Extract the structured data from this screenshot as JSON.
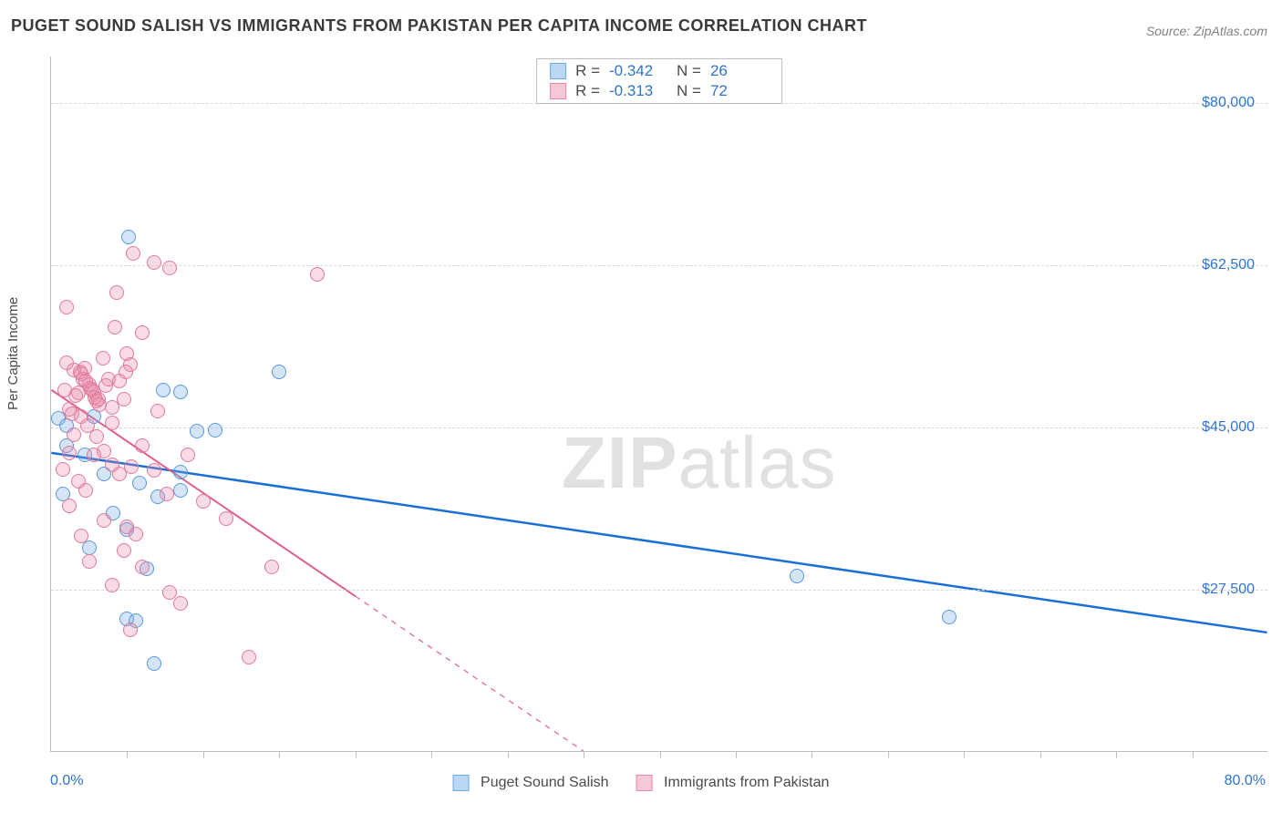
{
  "title": "PUGET SOUND SALISH VS IMMIGRANTS FROM PAKISTAN PER CAPITA INCOME CORRELATION CHART",
  "source": "Source: ZipAtlas.com",
  "y_axis_label": "Per Capita Income",
  "watermark": {
    "bold": "ZIP",
    "rest": "atlas"
  },
  "chart": {
    "type": "scatter",
    "xlim": [
      0,
      80
    ],
    "ylim": [
      10000,
      85000
    ],
    "x_min_label": "0.0%",
    "x_max_label": "80.0%",
    "y_ticks": [
      {
        "value": 80000,
        "label": "$80,000"
      },
      {
        "value": 62500,
        "label": "$62,500"
      },
      {
        "value": 45000,
        "label": "$45,000"
      },
      {
        "value": 27500,
        "label": "$27,500"
      }
    ],
    "x_tick_positions": [
      5,
      10,
      15,
      20,
      25,
      30,
      35,
      40,
      45,
      50,
      55,
      60,
      65,
      70,
      75
    ],
    "background_color": "#ffffff",
    "grid_color": "#d8d8d8",
    "marker_size": 16,
    "marker_opacity": 0.45,
    "series": [
      {
        "name": "Puget Sound Salish",
        "swatch_fill": "#bcd6f5",
        "swatch_border": "#6fa8e8",
        "point_fill": "rgba(111,168,232,0.30)",
        "point_border": "#5a96de",
        "trend_color": "#1a6fd6",
        "trend_width": 2.5,
        "trend_dash_after_x": 80,
        "R": "-0.342",
        "N": "26",
        "trend": {
          "x1": 0,
          "y1": 42200,
          "x2": 80,
          "y2": 22800
        },
        "points": [
          [
            5.1,
            65500
          ],
          [
            0.5,
            46000
          ],
          [
            1.0,
            45200
          ],
          [
            1.0,
            43000
          ],
          [
            15.0,
            51000
          ],
          [
            8.5,
            48800
          ],
          [
            9.6,
            44600
          ],
          [
            10.8,
            44700
          ],
          [
            8.5,
            40200
          ],
          [
            8.5,
            38200
          ],
          [
            5.8,
            39000
          ],
          [
            7.0,
            37500
          ],
          [
            5.0,
            34000
          ],
          [
            6.3,
            29800
          ],
          [
            5.0,
            24400
          ],
          [
            5.6,
            24200
          ],
          [
            6.8,
            19500
          ],
          [
            7.4,
            49000
          ],
          [
            4.1,
            35800
          ],
          [
            2.5,
            32000
          ],
          [
            2.2,
            42000
          ],
          [
            0.8,
            37800
          ],
          [
            2.8,
            46200
          ],
          [
            49.0,
            29000
          ],
          [
            59.0,
            24500
          ],
          [
            3.5,
            40000
          ]
        ]
      },
      {
        "name": "Immigrants from Pakistan",
        "swatch_fill": "#f6c7d4",
        "swatch_border": "#e988a6",
        "point_fill": "rgba(233,136,166,0.30)",
        "point_border": "#df7b9a",
        "trend_color": "#e06088",
        "trend_width": 2,
        "trend_dash_after_x": 20,
        "R": "-0.313",
        "N": "72",
        "trend": {
          "x1": 0,
          "y1": 49000,
          "x2": 35,
          "y2": 10000
        },
        "points": [
          [
            1.0,
            58000
          ],
          [
            5.4,
            63800
          ],
          [
            6.8,
            62800
          ],
          [
            7.8,
            62200
          ],
          [
            4.3,
            59500
          ],
          [
            4.2,
            55800
          ],
          [
            6.0,
            55200
          ],
          [
            5.0,
            53000
          ],
          [
            17.5,
            61500
          ],
          [
            1.5,
            51200
          ],
          [
            1.9,
            51000
          ],
          [
            2.0,
            50800
          ],
          [
            2.1,
            50200
          ],
          [
            2.3,
            50000
          ],
          [
            2.5,
            49600
          ],
          [
            2.6,
            49200
          ],
          [
            1.8,
            48700
          ],
          [
            1.6,
            48400
          ],
          [
            2.7,
            49000
          ],
          [
            2.8,
            48800
          ],
          [
            2.9,
            48200
          ],
          [
            3.0,
            47800
          ],
          [
            3.1,
            48000
          ],
          [
            3.2,
            47500
          ],
          [
            1.2,
            47000
          ],
          [
            1.4,
            46500
          ],
          [
            2.0,
            46200
          ],
          [
            2.4,
            45200
          ],
          [
            4.0,
            47200
          ],
          [
            4.0,
            45500
          ],
          [
            3.8,
            50200
          ],
          [
            3.6,
            49500
          ],
          [
            5.2,
            51800
          ],
          [
            4.9,
            51000
          ],
          [
            4.5,
            50000
          ],
          [
            4.8,
            48000
          ],
          [
            7.0,
            46800
          ],
          [
            3.0,
            44000
          ],
          [
            3.5,
            42400
          ],
          [
            2.8,
            42000
          ],
          [
            1.2,
            42200
          ],
          [
            4.0,
            41000
          ],
          [
            4.5,
            40000
          ],
          [
            5.3,
            40800
          ],
          [
            1.8,
            39200
          ],
          [
            2.3,
            38200
          ],
          [
            6.8,
            40400
          ],
          [
            9.0,
            42000
          ],
          [
            7.6,
            37800
          ],
          [
            10.0,
            37000
          ],
          [
            11.5,
            35200
          ],
          [
            3.5,
            35000
          ],
          [
            5.0,
            34300
          ],
          [
            5.6,
            33500
          ],
          [
            2.0,
            33300
          ],
          [
            4.8,
            31700
          ],
          [
            2.5,
            30500
          ],
          [
            6.0,
            30000
          ],
          [
            14.5,
            30000
          ],
          [
            4.0,
            28000
          ],
          [
            7.8,
            27200
          ],
          [
            8.5,
            26000
          ],
          [
            5.2,
            23200
          ],
          [
            13.0,
            20200
          ],
          [
            1.2,
            36500
          ],
          [
            0.8,
            40500
          ],
          [
            1.5,
            44200
          ],
          [
            0.9,
            49000
          ],
          [
            2.2,
            51400
          ],
          [
            3.4,
            52500
          ],
          [
            1.0,
            52000
          ],
          [
            6.0,
            43000
          ]
        ]
      }
    ]
  },
  "legend_top": {
    "r_label": "R =",
    "n_label": "N ="
  }
}
